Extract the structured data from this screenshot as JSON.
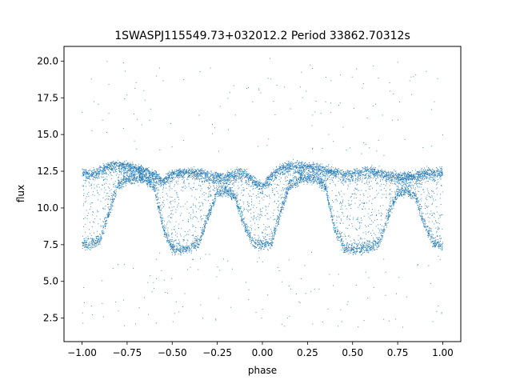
{
  "chart_data": {
    "type": "scatter",
    "title": "1SWASPJ115549.73+032012.2 Period 33862.70312s",
    "xlabel": "phase",
    "ylabel": "flux",
    "xlim": [
      -1.1,
      1.1
    ],
    "ylim": [
      0.9,
      21.0
    ],
    "x_ticks": [
      -1.0,
      -0.75,
      -0.5,
      -0.25,
      0.0,
      0.25,
      0.5,
      0.75,
      1.0
    ],
    "x_tick_labels": [
      "−1.00",
      "−0.75",
      "−0.50",
      "−0.25",
      "0.00",
      "0.25",
      "0.50",
      "0.75",
      "1.00"
    ],
    "y_ticks": [
      2.5,
      5.0,
      7.5,
      10.0,
      12.5,
      15.0,
      17.5,
      20.0
    ],
    "y_tick_labels": [
      "2.5",
      "5.0",
      "7.5",
      "10.0",
      "12.5",
      "15.0",
      "17.5",
      "20.0"
    ],
    "grid": false,
    "marker_color": "#1f77b4",
    "series": [
      {
        "phase_range": [
          -1.0,
          1.0
        ],
        "envelope": {
          "phase": [
            -1.0,
            -0.95,
            -0.9,
            -0.85,
            -0.8,
            -0.75,
            -0.7,
            -0.65,
            -0.6,
            -0.55,
            -0.5,
            -0.45,
            -0.4,
            -0.35,
            -0.3,
            -0.25,
            -0.2,
            -0.15,
            -0.1,
            -0.05,
            0.0,
            0.05,
            0.1,
            0.15,
            0.2,
            0.25,
            0.3,
            0.35,
            0.4,
            0.45,
            0.5,
            0.55,
            0.6,
            0.65,
            0.7,
            0.75,
            0.8,
            0.85,
            0.9,
            0.95,
            1.0
          ],
          "flux_upper": [
            12.6,
            12.4,
            12.7,
            13.0,
            13.1,
            13.0,
            12.9,
            12.7,
            12.4,
            12.0,
            12.5,
            12.6,
            12.6,
            12.6,
            12.4,
            12.3,
            12.3,
            12.5,
            12.6,
            12.0,
            11.6,
            12.4,
            12.9,
            13.1,
            13.0,
            13.0,
            12.9,
            12.8,
            12.6,
            12.4,
            12.5,
            12.6,
            12.7,
            12.6,
            12.4,
            12.3,
            12.3,
            12.4,
            12.6,
            12.6,
            12.6
          ],
          "flux_lower": [
            7.3,
            7.3,
            7.6,
            9.5,
            11.3,
            11.7,
            11.8,
            11.8,
            11.2,
            8.4,
            7.0,
            7.0,
            7.1,
            7.4,
            9.3,
            10.8,
            11.0,
            10.5,
            8.6,
            7.3,
            7.3,
            7.4,
            9.5,
            11.3,
            11.7,
            11.8,
            11.8,
            11.2,
            8.4,
            7.1,
            7.0,
            7.0,
            7.1,
            7.4,
            9.3,
            10.8,
            11.0,
            10.5,
            8.6,
            7.4,
            7.3
          ]
        },
        "outlier_flux_range": [
          1.8,
          20.2
        ]
      }
    ]
  }
}
